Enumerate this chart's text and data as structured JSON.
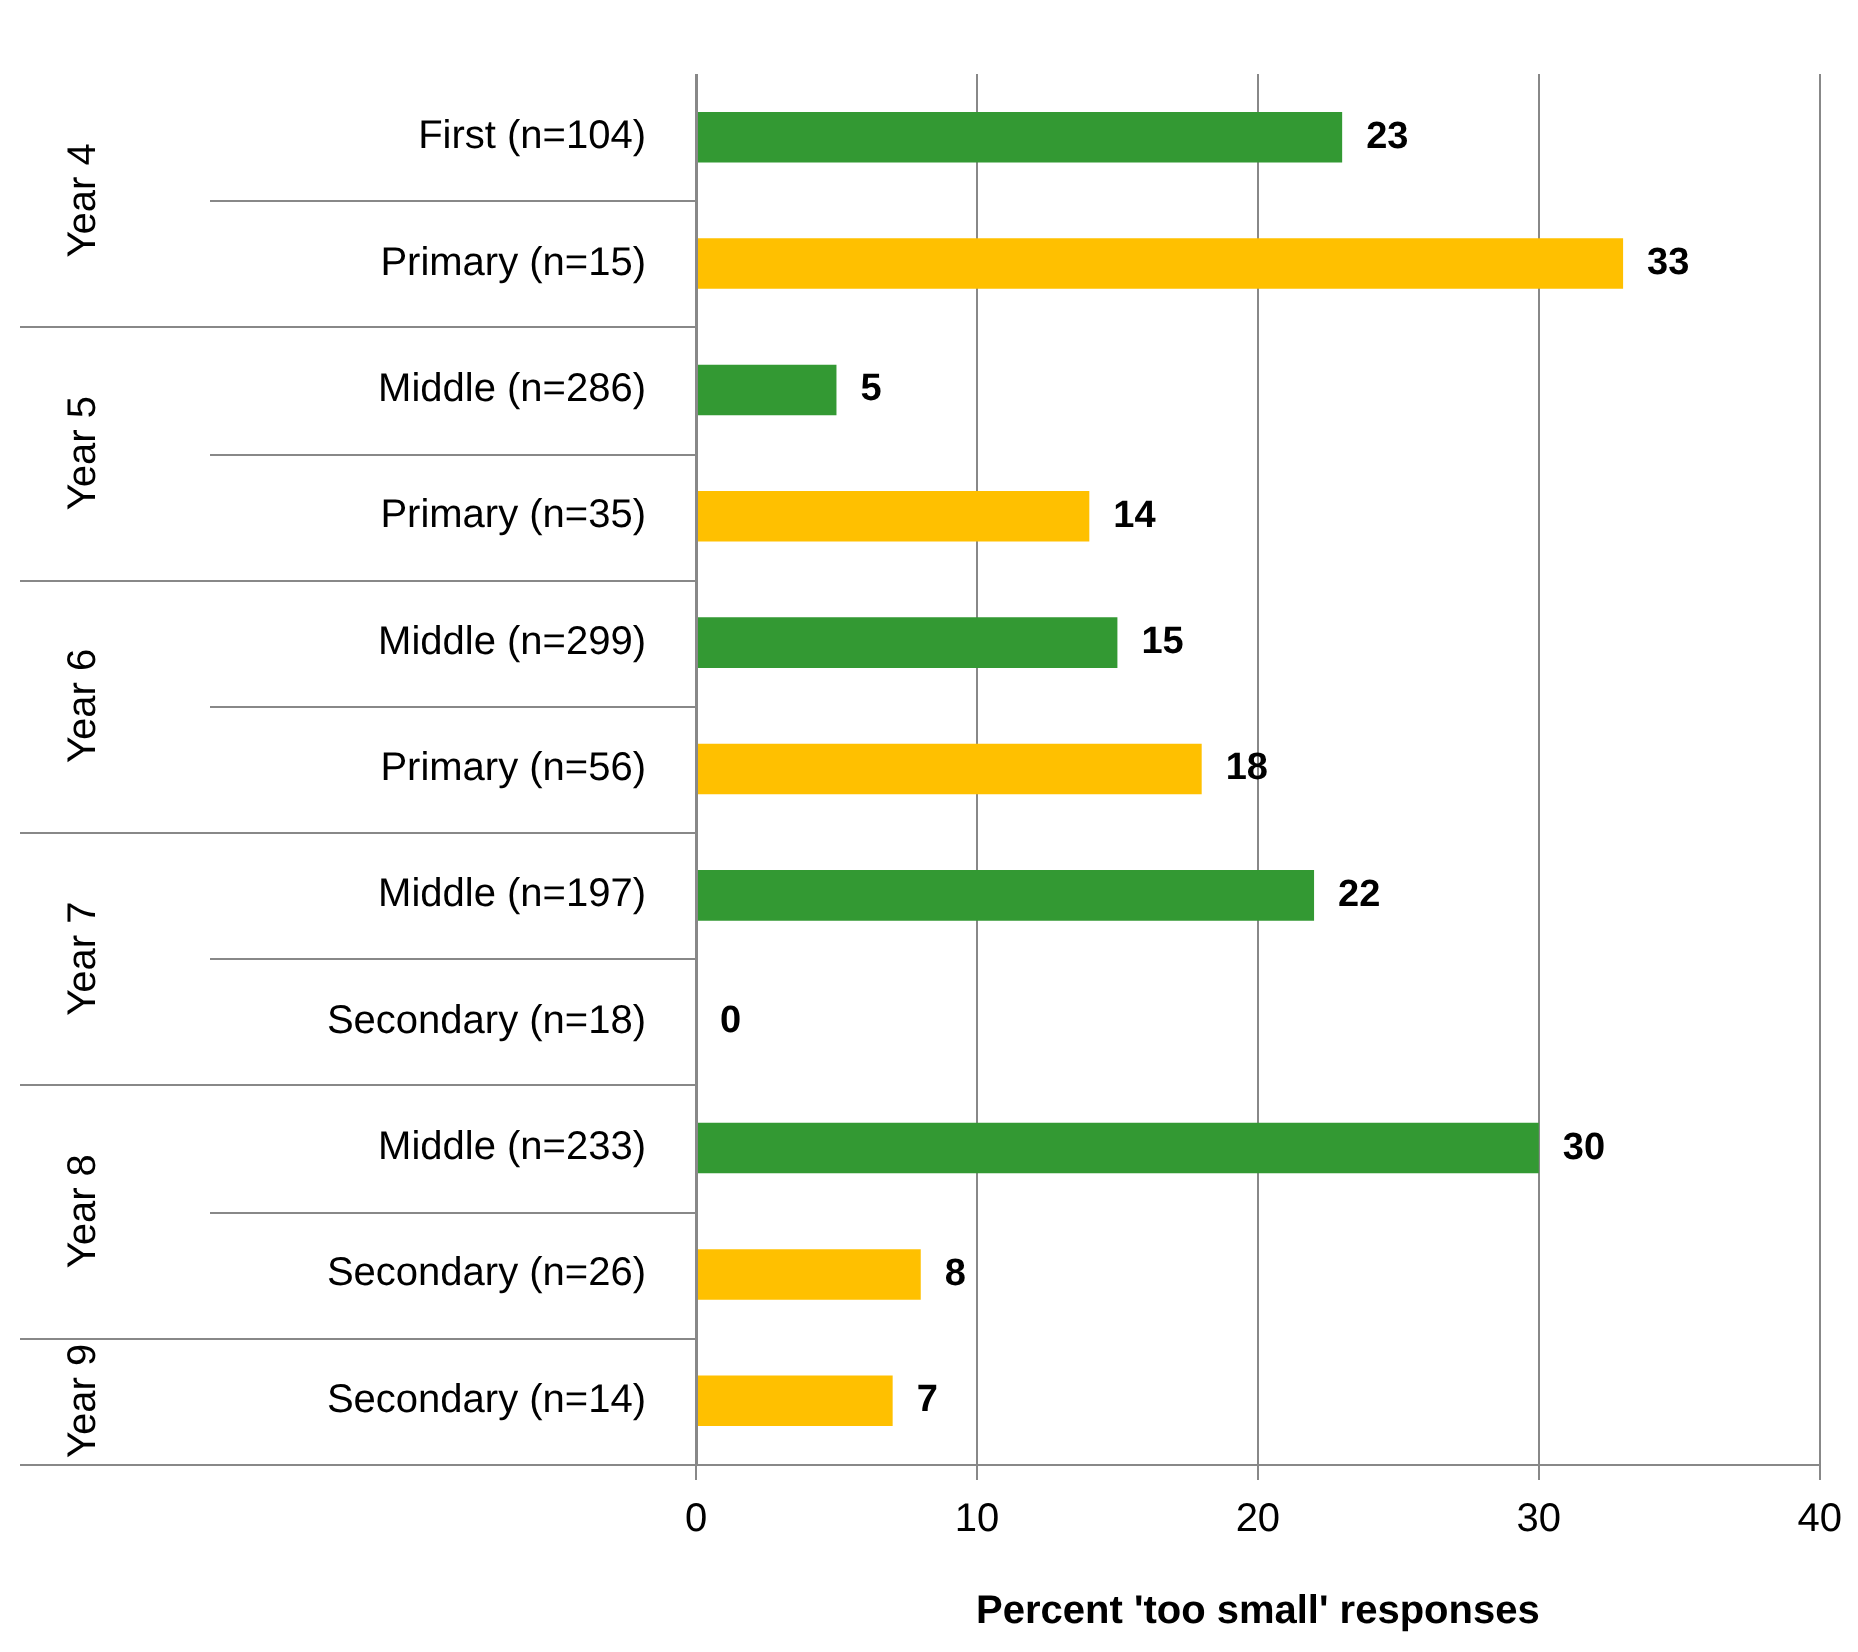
{
  "chart_data": {
    "type": "bar",
    "orientation": "horizontal",
    "xlabel": "Percent 'too small' responses",
    "categories": [
      "First (n=104)",
      "Primary (n=15)",
      "Middle (n=286)",
      "Primary (n=35)",
      "Middle (n=299)",
      "Primary (n=56)",
      "Middle (n=197)",
      "Secondary (n=18)",
      "Middle (n=233)",
      "Secondary (n=26)",
      "Secondary (n=14)"
    ],
    "values": [
      23,
      33,
      5,
      14,
      15,
      18,
      22,
      0,
      30,
      8,
      7
    ],
    "colors": [
      "#339933",
      "#ffc000",
      "#339933",
      "#ffc000",
      "#339933",
      "#ffc000",
      "#339933",
      "#ffc000",
      "#339933",
      "#ffc000",
      "#ffc000"
    ],
    "xlim": [
      0,
      40
    ],
    "xticks": [
      0,
      10,
      20,
      30,
      40
    ],
    "grid": "x",
    "legend": false,
    "data_labels": true,
    "annotations": [
      "Year 4",
      "Year 5",
      "Year 6",
      "Year 7",
      "Year 8",
      "Year 9"
    ]
  }
}
